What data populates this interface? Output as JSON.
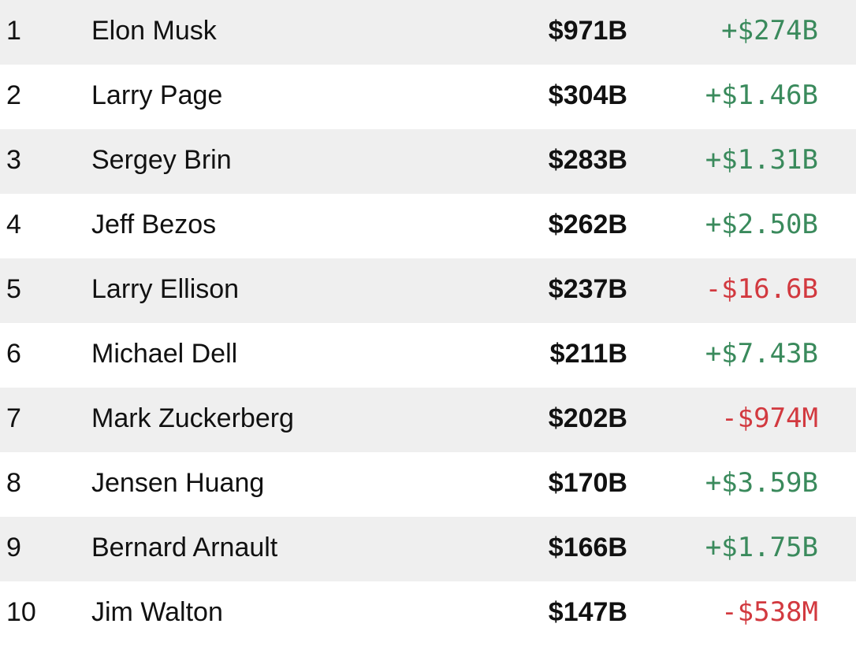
{
  "table": {
    "up_color": "#3a8a5c",
    "down_color": "#d2393f",
    "stripe_color": "#efefef",
    "rows": [
      [
        "1",
        "Elon Musk",
        "$971B",
        "+$274B"
      ],
      [
        "2",
        "Larry Page",
        "$304B",
        "+$1.46B"
      ],
      [
        "3",
        "Sergey Brin",
        "$283B",
        "+$1.31B"
      ],
      [
        "4",
        "Jeff Bezos",
        "$262B",
        "+$2.50B"
      ],
      [
        "5",
        "Larry Ellison",
        "$237B",
        "-$16.6B"
      ],
      [
        "6",
        "Michael Dell",
        "$211B",
        "+$7.43B"
      ],
      [
        "7",
        "Mark Zuckerberg",
        "$202B",
        "-$974M"
      ],
      [
        "8",
        "Jensen Huang",
        "$170B",
        "+$3.59B"
      ],
      [
        "9",
        "Bernard Arnault",
        "$166B",
        "+$1.75B"
      ],
      [
        "10",
        "Jim Walton",
        "$147B",
        "-$538M"
      ]
    ]
  }
}
